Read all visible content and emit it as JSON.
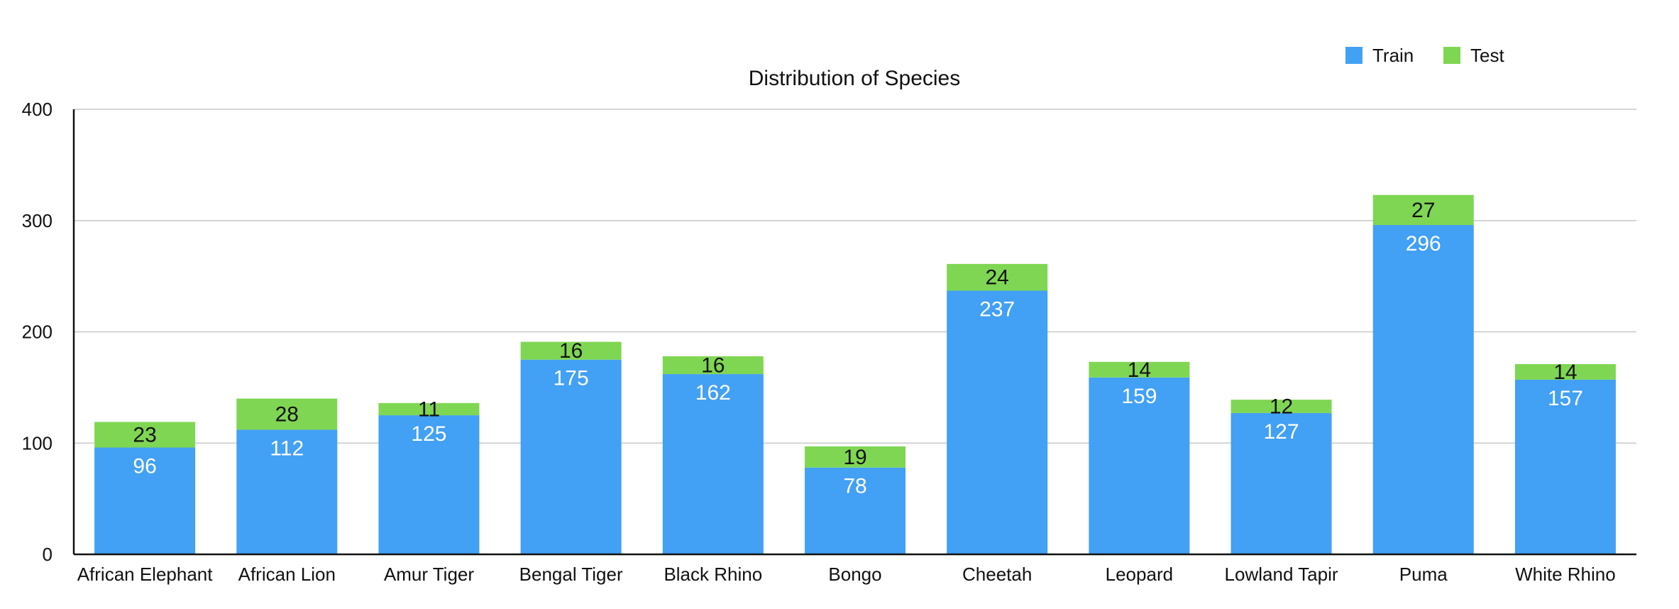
{
  "chart_data": {
    "type": "bar",
    "stacked": true,
    "title": "Distribution of Species",
    "xlabel": "",
    "ylabel": "",
    "ylim": [
      0,
      400
    ],
    "yticks": [
      0,
      100,
      200,
      300,
      400
    ],
    "grid": true,
    "legend_position": "top-right",
    "categories": [
      "African Elephant",
      "African Lion",
      "Amur Tiger",
      "Bengal Tiger",
      "Black Rhino",
      "Bongo",
      "Cheetah",
      "Leopard",
      "Lowland Tapir",
      "Puma",
      "White Rhino"
    ],
    "series": [
      {
        "name": "Train",
        "color": "#42a0f5",
        "values": [
          96,
          112,
          125,
          175,
          162,
          78,
          237,
          159,
          127,
          296,
          157
        ]
      },
      {
        "name": "Test",
        "color": "#7fd653",
        "values": [
          23,
          28,
          11,
          16,
          16,
          19,
          24,
          14,
          12,
          27,
          14
        ]
      }
    ]
  }
}
